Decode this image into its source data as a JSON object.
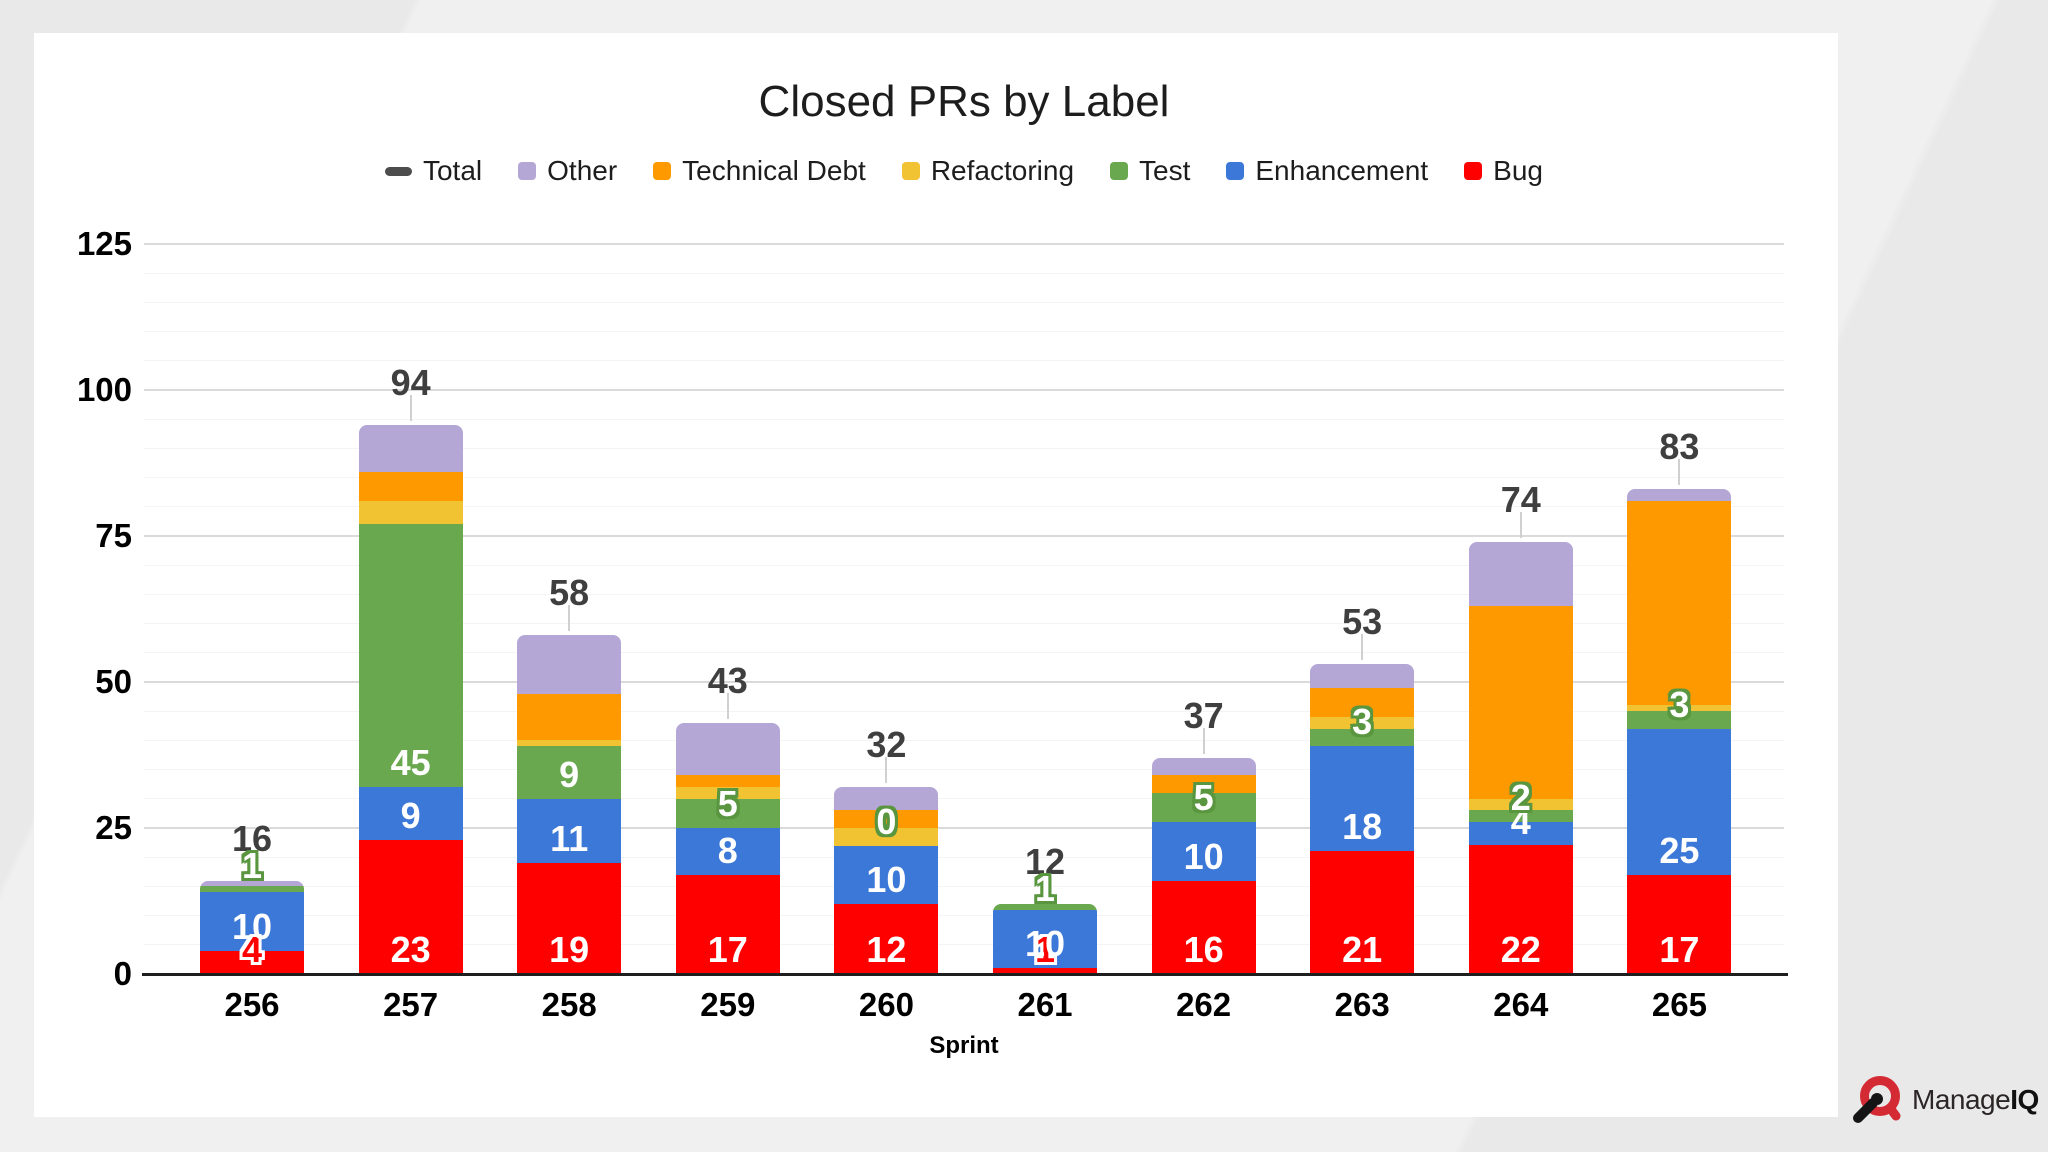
{
  "title": "Closed PRs by Label",
  "branding": {
    "manage": "Manage",
    "iq": "IQ"
  },
  "legend": [
    {
      "label": "Total",
      "color": "#4d4d4d",
      "marker": "dash"
    },
    {
      "label": "Other",
      "color": "#b4a7d6",
      "marker": "square"
    },
    {
      "label": "Technical Debt",
      "color": "#ff9900",
      "marker": "square"
    },
    {
      "label": "Refactoring",
      "color": "#f1c232",
      "marker": "square"
    },
    {
      "label": "Test",
      "color": "#6aa84f",
      "marker": "square"
    },
    {
      "label": "Enhancement",
      "color": "#3c78d8",
      "marker": "square"
    },
    {
      "label": "Bug",
      "color": "#fe0000",
      "marker": "square"
    }
  ],
  "chart_data": {
    "type": "bar",
    "stacked": true,
    "title": "Closed PRs by Label",
    "xlabel": "Sprint",
    "ylabel": "",
    "ylim": [
      0,
      125
    ],
    "yticks": [
      0,
      25,
      50,
      75,
      100,
      125
    ],
    "grid": "major-and-faint-minor",
    "legend_position": "top-center",
    "categories": [
      "256",
      "257",
      "258",
      "259",
      "260",
      "261",
      "262",
      "263",
      "264",
      "265"
    ],
    "series": [
      {
        "name": "Bug",
        "color": "#fe0000",
        "values": [
          4,
          23,
          19,
          17,
          12,
          1,
          16,
          21,
          22,
          17
        ]
      },
      {
        "name": "Enhancement",
        "color": "#3c78d8",
        "values": [
          10,
          9,
          11,
          8,
          10,
          10,
          10,
          18,
          4,
          25
        ]
      },
      {
        "name": "Test",
        "color": "#6aa84f",
        "values": [
          1,
          45,
          9,
          5,
          0,
          1,
          5,
          3,
          2,
          3
        ]
      },
      {
        "name": "Refactoring",
        "color": "#f1c232",
        "values": [
          0,
          4,
          1,
          2,
          3,
          0,
          0,
          2,
          2,
          1
        ]
      },
      {
        "name": "Technical Debt",
        "color": "#ff9900",
        "values": [
          0,
          5,
          8,
          2,
          3,
          0,
          3,
          5,
          33,
          35
        ]
      },
      {
        "name": "Other",
        "color": "#b4a7d6",
        "values": [
          1,
          8,
          10,
          9,
          4,
          0,
          3,
          4,
          11,
          2
        ]
      }
    ],
    "totals": [
      16,
      94,
      58,
      43,
      32,
      12,
      37,
      53,
      74,
      83
    ],
    "visible_segment_labels": {
      "Bug": {
        "values": [
          "4",
          "23",
          "19",
          "17",
          "12",
          "1",
          "16",
          "21",
          "22",
          "17"
        ],
        "styles": [
          "red-outline",
          "white",
          "white",
          "white",
          "white",
          "red-outline",
          "white",
          "white",
          "white",
          "white"
        ]
      },
      "Enhancement": {
        "values": [
          "10",
          "9",
          "11",
          "8",
          "10",
          "10",
          "10",
          "18",
          "4",
          "25"
        ],
        "styles": [
          "white",
          "white",
          "white",
          "white",
          "white",
          "white",
          "white",
          "white",
          "white",
          "white"
        ]
      },
      "Test": {
        "values": [
          "1",
          "45",
          "9",
          "5",
          "0",
          "1",
          "5",
          "3",
          "2",
          "3"
        ],
        "styles": [
          "above",
          "white",
          "white",
          "green-outline",
          "green-outline",
          "above",
          "green-outline",
          "green-outline",
          "green-outline",
          "green-outline"
        ]
      }
    }
  }
}
